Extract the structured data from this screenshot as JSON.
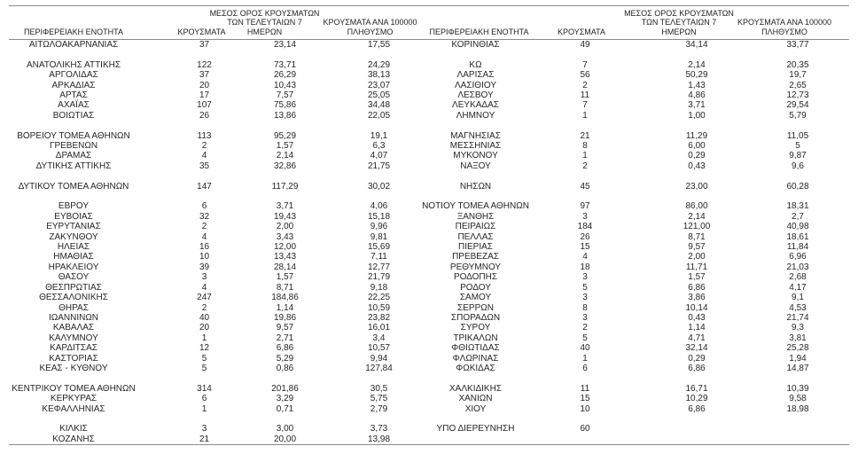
{
  "colors": {
    "background": "#ffffff",
    "text": "#262626",
    "rule": "#8c8c8c"
  },
  "table": {
    "headers": {
      "region": "ΠΕΡΙΦΕΡΕΙΑΚΗ ΕΝΟΤΗΤΑ",
      "cases": "ΚΡΟΥΣΜΑΤΑ",
      "avg7": "ΜΕΣΟΣ ΟΡΟΣ ΚΡΟΥΣΜΑΤΩΝ\nΤΩΝ ΤΕΛΕΥΤΑΙΩΝ 7\nΗΜΕΡΩΝ",
      "per100k": "ΚΡΟΥΣΜΑΤΑ ΑΝΑ 100000\nΠΛΗΘΥΣΜΟ"
    },
    "rows": [
      {
        "l": [
          "ΑΙΤΩΛΟΑΚΑΡΝΑΝΙΑΣ",
          "37",
          "23,14",
          "17,55"
        ],
        "r": [
          "ΚΟΡΙΝΘΙΑΣ",
          "49",
          "34,14",
          "33,77"
        ]
      },
      {},
      {
        "l": [
          "ΑΝΑΤΟΛΙΚΗΣ ΑΤΤΙΚΗΣ",
          "122",
          "73,71",
          "24,29"
        ],
        "r": [
          "ΚΩ",
          "7",
          "2,14",
          "20,35"
        ]
      },
      {
        "l": [
          "ΑΡΓΟΛΙΔΑΣ",
          "37",
          "26,29",
          "38,13"
        ],
        "r": [
          "ΛΑΡΙΣΑΣ",
          "56",
          "50,29",
          "19,7"
        ]
      },
      {
        "l": [
          "ΑΡΚΑΔΙΑΣ",
          "20",
          "10,43",
          "23,07"
        ],
        "r": [
          "ΛΑΣΙΘΙΟΥ",
          "2",
          "1,43",
          "2,65"
        ]
      },
      {
        "l": [
          "ΑΡΤΑΣ",
          "17",
          "7,57",
          "25,05"
        ],
        "r": [
          "ΛΕΣΒΟΥ",
          "11",
          "4,86",
          "12,73"
        ]
      },
      {
        "l": [
          "ΑΧΑΪΑΣ",
          "107",
          "75,86",
          "34,48"
        ],
        "r": [
          "ΛΕΥΚΑΔΑΣ",
          "7",
          "3,71",
          "29,54"
        ]
      },
      {
        "l": [
          "ΒΟΙΩΤΙΑΣ",
          "26",
          "13,86",
          "22,05"
        ],
        "r": [
          "ΛΗΜΝΟΥ",
          "1",
          "1,00",
          "5,79"
        ]
      },
      {},
      {
        "l": [
          "ΒΟΡΕΙΟΥ ΤΟΜΕΑ ΑΘΗΝΩΝ",
          "113",
          "95,29",
          "19,1"
        ],
        "r": [
          "ΜΑΓΝΗΣΙΑΣ",
          "21",
          "11,29",
          "11,05"
        ]
      },
      {
        "l": [
          "ΓΡΕΒΕΝΩΝ",
          "2",
          "1,57",
          "6,3"
        ],
        "r": [
          "ΜΕΣΣΗΝΙΑΣ",
          "8",
          "6,00",
          "5"
        ]
      },
      {
        "l": [
          "ΔΡΑΜΑΣ",
          "4",
          "2,14",
          "4,07"
        ],
        "r": [
          "ΜΥΚΟΝΟΥ",
          "1",
          "0,29",
          "9,87"
        ]
      },
      {
        "l": [
          "ΔΥΤΙΚΗΣ ΑΤΤΙΚΗΣ",
          "35",
          "32,86",
          "21,75"
        ],
        "r": [
          "ΝΑΞΟΥ",
          "2",
          "0,43",
          "9,6"
        ]
      },
      {},
      {
        "l": [
          "ΔΥΤΙΚΟΥ ΤΟΜΕΑ ΑΘΗΝΩΝ",
          "147",
          "117,29",
          "30,02"
        ],
        "r": [
          "ΝΗΣΩΝ",
          "45",
          "23,00",
          "60,28"
        ]
      },
      {},
      {
        "l": [
          "ΕΒΡΟΥ",
          "6",
          "3,71",
          "4,06"
        ],
        "r": [
          "ΝΟΤΙΟΥ ΤΟΜΕΑ ΑΘΗΝΩΝ",
          "97",
          "86,00",
          "18,31"
        ]
      },
      {
        "l": [
          "ΕΥΒΟΙΑΣ",
          "32",
          "19,43",
          "15,18"
        ],
        "r": [
          "ΞΑΝΘΗΣ",
          "3",
          "2,14",
          "2,7"
        ]
      },
      {
        "l": [
          "ΕΥΡΥΤΑΝΙΑΣ",
          "2",
          "2,00",
          "9,96"
        ],
        "r": [
          "ΠΕΙΡΑΙΩΣ",
          "184",
          "121,00",
          "40,98"
        ]
      },
      {
        "l": [
          "ΖΑΚΥΝΘΟΥ",
          "4",
          "3,43",
          "9,81"
        ],
        "r": [
          "ΠΕΛΛΑΣ",
          "26",
          "8,71",
          "18,61"
        ]
      },
      {
        "l": [
          "ΗΛΕΙΑΣ",
          "16",
          "12,00",
          "15,69"
        ],
        "r": [
          "ΠΙΕΡΙΑΣ",
          "15",
          "9,57",
          "11,84"
        ]
      },
      {
        "l": [
          "ΗΜΑΘΙΑΣ",
          "10",
          "13,43",
          "7,11"
        ],
        "r": [
          "ΠΡΕΒΕΖΑΣ",
          "4",
          "2,00",
          "6,96"
        ]
      },
      {
        "l": [
          "ΗΡΑΚΛΕΙΟΥ",
          "39",
          "28,14",
          "12,77"
        ],
        "r": [
          "ΡΕΘΥΜΝΟΥ",
          "18",
          "11,71",
          "21,03"
        ]
      },
      {
        "l": [
          "ΘΑΣΟΥ",
          "3",
          "1,57",
          "21,79"
        ],
        "r": [
          "ΡΟΔΟΠΗΣ",
          "3",
          "1,57",
          "2,68"
        ]
      },
      {
        "l": [
          "ΘΕΣΠΡΩΤΙΑΣ",
          "4",
          "8,71",
          "9,18"
        ],
        "r": [
          "ΡΟΔΟΥ",
          "5",
          "6,86",
          "4,17"
        ]
      },
      {
        "l": [
          "ΘΕΣΣΑΛΟΝΙΚΗΣ",
          "247",
          "184,86",
          "22,25"
        ],
        "r": [
          "ΣΑΜΟΥ",
          "3",
          "3,86",
          "9,1"
        ]
      },
      {
        "l": [
          "ΘΗΡΑΣ",
          "2",
          "1,14",
          "10,59"
        ],
        "r": [
          "ΣΕΡΡΩΝ",
          "8",
          "10,14",
          "4,53"
        ]
      },
      {
        "l": [
          "ΙΩΑΝΝΙΝΩΝ",
          "40",
          "19,86",
          "23,82"
        ],
        "r": [
          "ΣΠΟΡΑΔΩΝ",
          "3",
          "0,43",
          "21,74"
        ]
      },
      {
        "l": [
          "ΚΑΒΑΛΑΣ",
          "20",
          "9,57",
          "16,01"
        ],
        "r": [
          "ΣΥΡΟΥ",
          "2",
          "1,14",
          "9,3"
        ]
      },
      {
        "l": [
          "ΚΑΛΥΜΝΟΥ",
          "1",
          "2,71",
          "3,4"
        ],
        "r": [
          "ΤΡΙΚΑΛΩΝ",
          "5",
          "4,71",
          "3,81"
        ]
      },
      {
        "l": [
          "ΚΑΡΔΙΤΣΑΣ",
          "12",
          "6,86",
          "10,57"
        ],
        "r": [
          "ΦΘΙΩΤΙΔΑΣ",
          "40",
          "32,14",
          "25,28"
        ]
      },
      {
        "l": [
          "ΚΑΣΤΟΡΙΑΣ",
          "5",
          "5,29",
          "9,94"
        ],
        "r": [
          "ΦΛΩΡΙΝΑΣ",
          "1",
          "0,29",
          "1,94"
        ]
      },
      {
        "l": [
          "ΚΕΑΣ - ΚΥΘΝΟΥ",
          "5",
          "0,86",
          "127,84"
        ],
        "r": [
          "ΦΩΚΙΔΑΣ",
          "6",
          "6,86",
          "14,87"
        ]
      },
      {},
      {
        "l": [
          "ΚΕΝΤΡΙΚΟΥ ΤΟΜΕΑ ΑΘΗΝΩΝ",
          "314",
          "201,86",
          "30,5"
        ],
        "r": [
          "ΧΑΛΚΙΔΙΚΗΣ",
          "11",
          "16,71",
          "10,39"
        ]
      },
      {
        "l": [
          "ΚΕΡΚΥΡΑΣ",
          "6",
          "3,29",
          "5,75"
        ],
        "r": [
          "ΧΑΝΙΩΝ",
          "15",
          "10,29",
          "9,58"
        ]
      },
      {
        "l": [
          "ΚΕΦΑΛΛΗΝΙΑΣ",
          "1",
          "0,71",
          "2,79"
        ],
        "r": [
          "ΧΙΟΥ",
          "10",
          "6,86",
          "18,98"
        ]
      },
      {},
      {
        "l": [
          "ΚΙΛΚΙΣ",
          "3",
          "3,00",
          "3,73"
        ],
        "r": [
          "ΥΠΟ ΔΙΕΡΕΥΝΗΣΗ",
          "60",
          "",
          ""
        ]
      },
      {
        "l": [
          "ΚΟΖΑΝΗΣ",
          "21",
          "20,00",
          "13,98"
        ]
      }
    ]
  }
}
